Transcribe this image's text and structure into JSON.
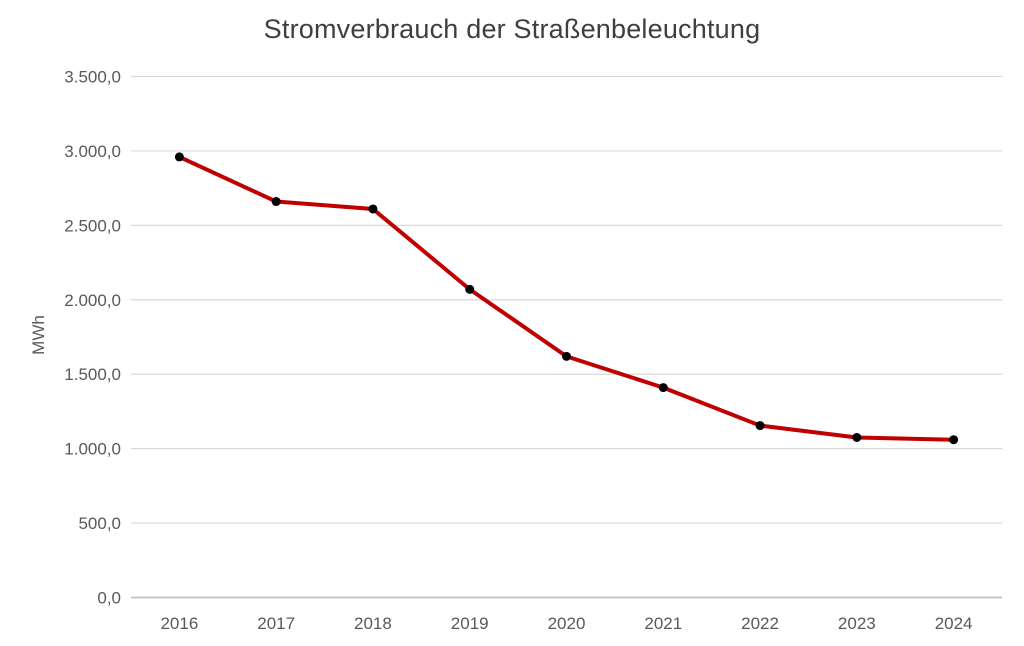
{
  "chart_data": {
    "type": "line",
    "title": "Stromverbrauch der Straßenbeleuchtung",
    "ylabel": "MWh",
    "categories": [
      "2016",
      "2017",
      "2018",
      "2019",
      "2020",
      "2021",
      "2022",
      "2023",
      "2024"
    ],
    "values": [
      2960,
      2660,
      2610,
      2070,
      1620,
      1410,
      1155,
      1075,
      1060
    ],
    "ylim": [
      0,
      3500
    ],
    "ytick_step": 500,
    "y_tick_labels": [
      "0,0",
      "500,0",
      "1.000,0",
      "1.500,0",
      "2.000,0",
      "2.500,0",
      "3.000,0",
      "3.500,0"
    ],
    "grid": true,
    "legend": "none",
    "colors": {
      "line": "#C00000",
      "marker": "#000000",
      "gridline": "#D9D9D9",
      "axis_line": "#BFBFBF",
      "title_text": "#3F3F3F",
      "tick_text": "#595959"
    }
  }
}
